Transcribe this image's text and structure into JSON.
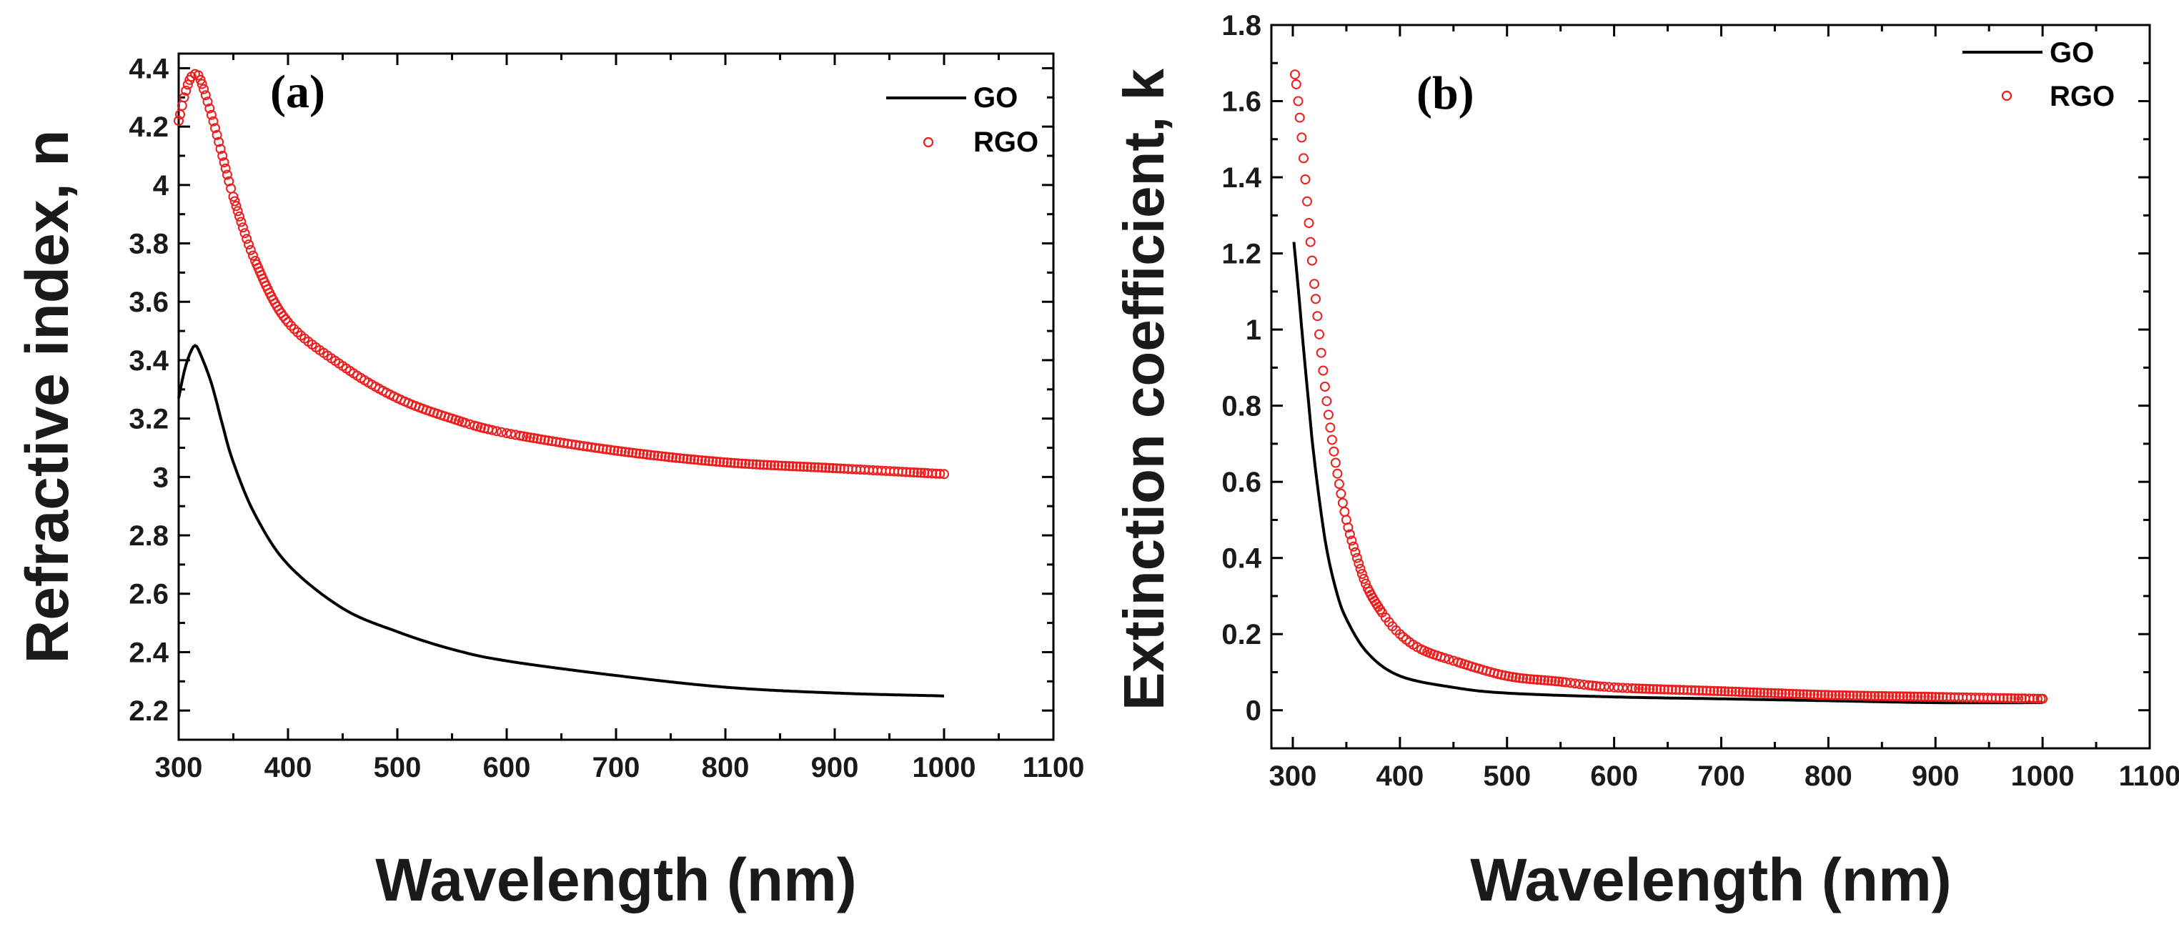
{
  "chart_data": [
    {
      "type": "line",
      "panel_label": "(a)",
      "xlabel": "Wavelength (nm)",
      "ylabel": "Refractive index, n",
      "xlim": [
        300,
        1100
      ],
      "ylim": [
        2.1,
        4.45
      ],
      "xticks": [
        300,
        400,
        500,
        600,
        700,
        800,
        900,
        1000,
        1100
      ],
      "yticks": [
        2.2,
        2.4,
        2.6,
        2.8,
        3.0,
        3.2,
        3.4,
        3.6,
        3.8,
        4.0,
        4.2,
        4.4
      ],
      "legend_position": "top-right",
      "series": [
        {
          "name": "GO",
          "style": "line",
          "color": "#000000",
          "x": [
            300,
            305,
            310,
            315,
            320,
            330,
            340,
            350,
            370,
            400,
            450,
            500,
            550,
            600,
            700,
            800,
            900,
            1000
          ],
          "y": [
            3.27,
            3.36,
            3.42,
            3.45,
            3.42,
            3.32,
            3.18,
            3.05,
            2.87,
            2.7,
            2.55,
            2.47,
            2.41,
            2.37,
            2.32,
            2.28,
            2.26,
            2.25
          ]
        },
        {
          "name": "RGO",
          "style": "circles",
          "color": "#ee1c1c",
          "x": [
            300,
            305,
            310,
            315,
            320,
            330,
            340,
            350,
            370,
            400,
            450,
            500,
            550,
            600,
            700,
            800,
            900,
            1000
          ],
          "y": [
            4.22,
            4.3,
            4.36,
            4.38,
            4.36,
            4.24,
            4.1,
            3.96,
            3.74,
            3.53,
            3.38,
            3.27,
            3.2,
            3.15,
            3.09,
            3.05,
            3.03,
            3.01
          ]
        }
      ]
    },
    {
      "type": "line",
      "panel_label": "(b)",
      "xlabel": "Wavelength (nm)",
      "ylabel": "Extinction coefficient, k",
      "xlim": [
        280,
        1100
      ],
      "ylim": [
        -0.1,
        1.8
      ],
      "xticks": [
        300,
        400,
        500,
        600,
        700,
        800,
        900,
        1000,
        1100
      ],
      "yticks": [
        0.0,
        0.2,
        0.4,
        0.6,
        0.8,
        1.0,
        1.2,
        1.4,
        1.6,
        1.8
      ],
      "legend_position": "top-right",
      "series": [
        {
          "name": "GO",
          "style": "line",
          "color": "#000000",
          "x": [
            301,
            305,
            310,
            315,
            320,
            330,
            340,
            350,
            370,
            400,
            450,
            500,
            600,
            700,
            800,
            900,
            1000
          ],
          "y": [
            1.23,
            1.11,
            0.95,
            0.8,
            0.66,
            0.45,
            0.32,
            0.24,
            0.15,
            0.09,
            0.06,
            0.045,
            0.035,
            0.03,
            0.025,
            0.02,
            0.02
          ]
        },
        {
          "name": "RGO",
          "style": "circles",
          "color": "#ee1c1c",
          "x": [
            302,
            305,
            310,
            315,
            320,
            330,
            340,
            350,
            360,
            370,
            385,
            400,
            420,
            450,
            500,
            550,
            600,
            700,
            800,
            900,
            1000
          ],
          "y": [
            1.67,
            1.6,
            1.45,
            1.28,
            1.12,
            0.85,
            0.65,
            0.5,
            0.4,
            0.32,
            0.25,
            0.2,
            0.16,
            0.13,
            0.09,
            0.075,
            0.06,
            0.05,
            0.04,
            0.035,
            0.03
          ]
        }
      ]
    }
  ]
}
